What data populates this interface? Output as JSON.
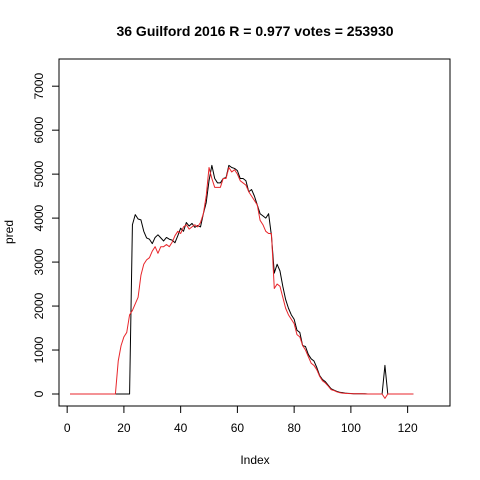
{
  "chart_data": {
    "type": "line",
    "title": "36 Guilford 2016 R = 0.977 votes = 253930",
    "xlabel": "Index",
    "ylabel": "pred",
    "xlim": [
      1,
      130
    ],
    "ylim": [
      0,
      7300
    ],
    "x_ticks": [
      0,
      20,
      40,
      60,
      80,
      100,
      120
    ],
    "y_ticks": [
      0,
      1000,
      2000,
      3000,
      4000,
      5000,
      6000,
      7000
    ],
    "colors": {
      "observed": "#000000",
      "pred": "#e8262b"
    },
    "grid": false,
    "legend": "none",
    "series": [
      {
        "values": [
          0,
          0,
          0,
          0,
          0,
          0,
          0,
          0,
          0,
          0,
          0,
          0,
          0,
          0,
          0,
          0,
          0,
          0,
          0,
          0,
          0,
          0,
          3850,
          4080,
          3980,
          3960,
          3700,
          3550,
          3520,
          3420,
          3560,
          3620,
          3550,
          3480,
          3560,
          3520,
          3500,
          3440,
          3600,
          3770,
          3700,
          3900,
          3820,
          3880,
          3790,
          3830,
          3800,
          4100,
          4350,
          4850,
          5200,
          4900,
          4800,
          4800,
          4900,
          4920,
          5200,
          5150,
          5130,
          5080,
          4900,
          4900,
          4850,
          4600,
          4650,
          4500,
          4300,
          4100,
          4050,
          4000,
          4100,
          3600,
          2750,
          2950,
          2800,
          2450,
          2150,
          1950,
          1800,
          1700,
          1450,
          1400,
          1100,
          1080,
          900,
          800,
          750,
          600,
          420,
          330,
          280,
          200,
          120,
          90,
          60,
          40,
          30,
          20,
          15,
          10,
          5,
          5,
          5,
          5,
          5,
          0,
          0,
          0,
          0,
          0,
          0,
          650,
          0,
          0,
          0,
          0,
          0,
          0,
          0,
          0,
          0,
          0
        ]
      },
      {
        "values": [
          0,
          0,
          0,
          0,
          0,
          0,
          0,
          0,
          0,
          0,
          0,
          0,
          0,
          0,
          0,
          0,
          0,
          750,
          1100,
          1300,
          1400,
          1800,
          1900,
          2050,
          2200,
          2700,
          2950,
          3050,
          3100,
          3250,
          3350,
          3200,
          3350,
          3350,
          3400,
          3350,
          3450,
          3600,
          3700,
          3650,
          3800,
          3850,
          3750,
          3800,
          3850,
          3800,
          3900,
          4100,
          4500,
          5150,
          4900,
          4700,
          4700,
          4700,
          4900,
          4900,
          5150,
          5050,
          5100,
          5000,
          4850,
          4800,
          4750,
          4600,
          4500,
          4400,
          4300,
          3950,
          3850,
          3700,
          3650,
          3650,
          2400,
          2500,
          2450,
          2200,
          1950,
          1800,
          1700,
          1600,
          1350,
          1300,
          1100,
          1000,
          850,
          700,
          650,
          550,
          400,
          300,
          250,
          180,
          100,
          80,
          50,
          30,
          20,
          15,
          10,
          8,
          5,
          5,
          5,
          5,
          0,
          0,
          0,
          0,
          0,
          0,
          0,
          -100,
          0,
          0,
          0,
          0,
          0,
          0,
          0,
          0,
          0,
          0
        ]
      }
    ]
  }
}
